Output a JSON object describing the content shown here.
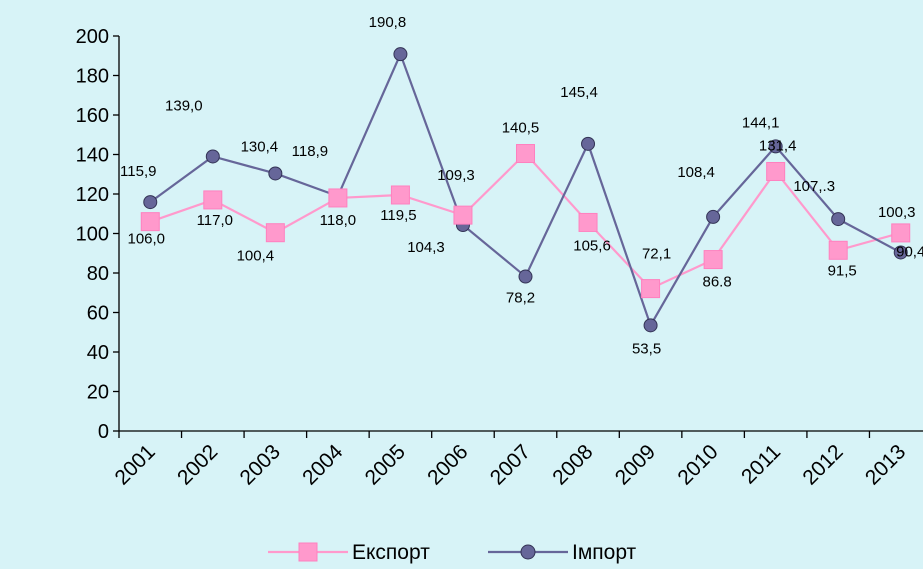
{
  "chart_data": {
    "type": "line",
    "categories": [
      "2001",
      "2002",
      "2003",
      "2004",
      "2005",
      "2006",
      "2007",
      "2008",
      "2009",
      "2010",
      "2011",
      "2012",
      "2013"
    ],
    "ylim": [
      0,
      200
    ],
    "yticks": [
      0,
      20,
      40,
      60,
      80,
      100,
      120,
      140,
      160,
      180,
      200
    ],
    "grid": false,
    "legend_position": "bottom",
    "series": [
      {
        "name": "Експорт",
        "marker": "square",
        "color": "#ff99cc",
        "values": [
          106.0,
          117.0,
          100.4,
          118.0,
          119.5,
          109.3,
          140.5,
          105.6,
          72.1,
          86.8,
          131.4,
          91.5,
          100.3
        ],
        "labels": [
          "106,0",
          "117,0",
          "100,4",
          "118,0",
          "119,5",
          "109,3",
          "140,5",
          "105,6",
          "72,1",
          "86.8",
          "131,4",
          "91,5",
          "100,3"
        ]
      },
      {
        "name": "Імпорт",
        "marker": "circle",
        "color": "#666699",
        "values": [
          115.9,
          139.0,
          130.4,
          118.9,
          190.8,
          104.3,
          78.2,
          145.4,
          53.5,
          108.4,
          144.1,
          107.3,
          90.4
        ],
        "labels": [
          "115,9",
          "139,0",
          "130,4",
          "118,9",
          "190,8",
          "104,3",
          "78,2",
          "145,4",
          "53,5",
          "108,4",
          "144,1",
          "107,.3",
          "90,4"
        ]
      }
    ]
  }
}
